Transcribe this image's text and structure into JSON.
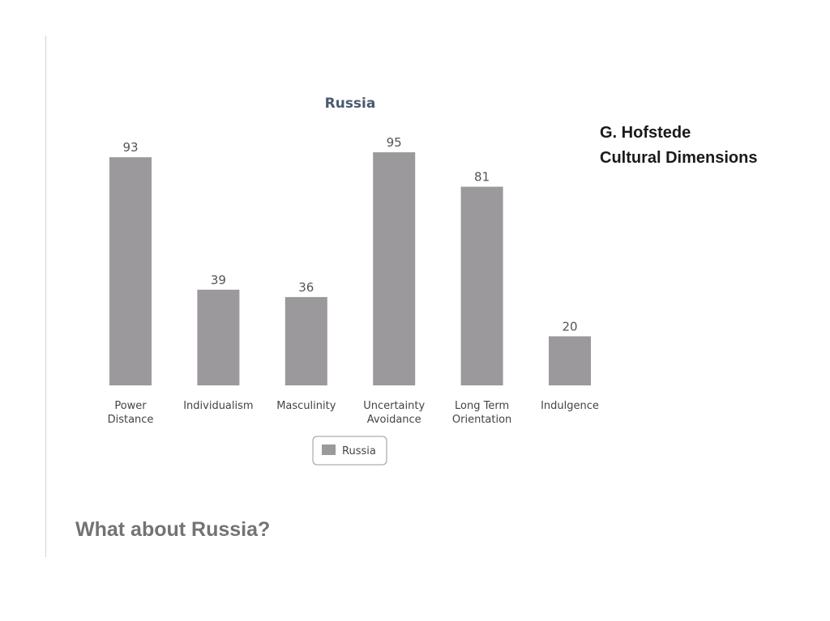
{
  "side_title": {
    "line1": "G. Hofstede",
    "line2": "Cultural Dimensions"
  },
  "question": "What about Russia?",
  "chart_data": {
    "type": "bar",
    "title": "Russia",
    "categories": [
      [
        "Power",
        "Distance"
      ],
      [
        "Individualism"
      ],
      [
        "Masculinity"
      ],
      [
        "Uncertainty",
        "Avoidance"
      ],
      [
        "Long Term",
        "Orientation"
      ],
      [
        "Indulgence"
      ]
    ],
    "series": [
      {
        "name": "Russia",
        "values": [
          93,
          39,
          36,
          95,
          81,
          20
        ],
        "color": "#9b999b"
      }
    ],
    "ylim": [
      0,
      100
    ],
    "grid": false,
    "legend": "bottom-center",
    "data_labels": true
  }
}
